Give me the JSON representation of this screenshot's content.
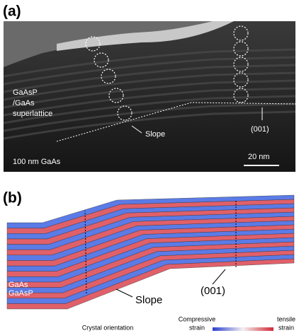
{
  "panel_a": {
    "label": "(a)",
    "sample_lines": [
      "GaAsP",
      "/GaAs",
      "superlattice"
    ],
    "slope_label": "Slope",
    "orientation_label": "(001)",
    "substrate_label": "100 nm GaAs",
    "scale_bar_label": "20 nm"
  },
  "panel_b": {
    "label": "(b)",
    "layer_labels": [
      "GaAs",
      "GaAsP"
    ],
    "slope_label": "Slope",
    "orientation_label": "(001)",
    "colorbar": {
      "low_label": [
        "Compressive",
        "strain"
      ],
      "high_label": [
        "tensile",
        "strain"
      ]
    },
    "axis_label": "Crystal orientation"
  }
}
